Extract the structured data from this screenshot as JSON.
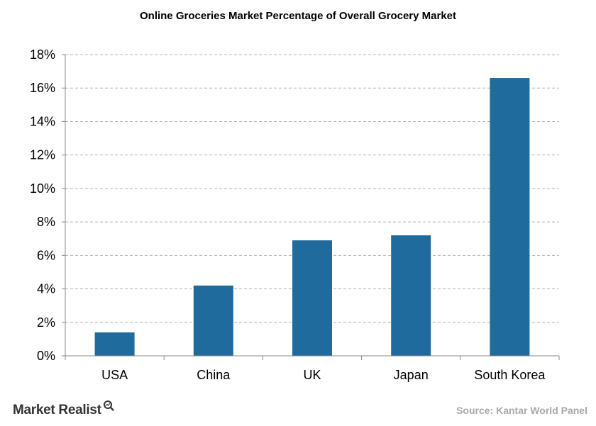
{
  "chart_data": {
    "type": "bar",
    "title": "Online Groceries Market Percentage of Overall Grocery Market",
    "categories": [
      "USA",
      "China",
      "UK",
      "Japan",
      "South Korea"
    ],
    "values": [
      1.4,
      4.2,
      6.9,
      7.2,
      16.6
    ],
    "ylim": [
      0,
      18
    ],
    "yticks": [
      0,
      2,
      4,
      6,
      8,
      10,
      12,
      14,
      16,
      18
    ],
    "ytick_labels": [
      "0%",
      "2%",
      "4%",
      "6%",
      "8%",
      "10%",
      "12%",
      "14%",
      "16%",
      "18%"
    ],
    "xlabel": "",
    "ylabel": "",
    "grid": "horizontal-dashed",
    "legend": "none",
    "bar_color": "#1f6b9e"
  },
  "branding": {
    "logo_text": "Market Realist",
    "source_text": "Source: Kantar World Panel"
  },
  "colors": {
    "grid": "#b3b3b3",
    "axis": "#888888",
    "source": "#a8a8a8",
    "logo": "#333333"
  }
}
